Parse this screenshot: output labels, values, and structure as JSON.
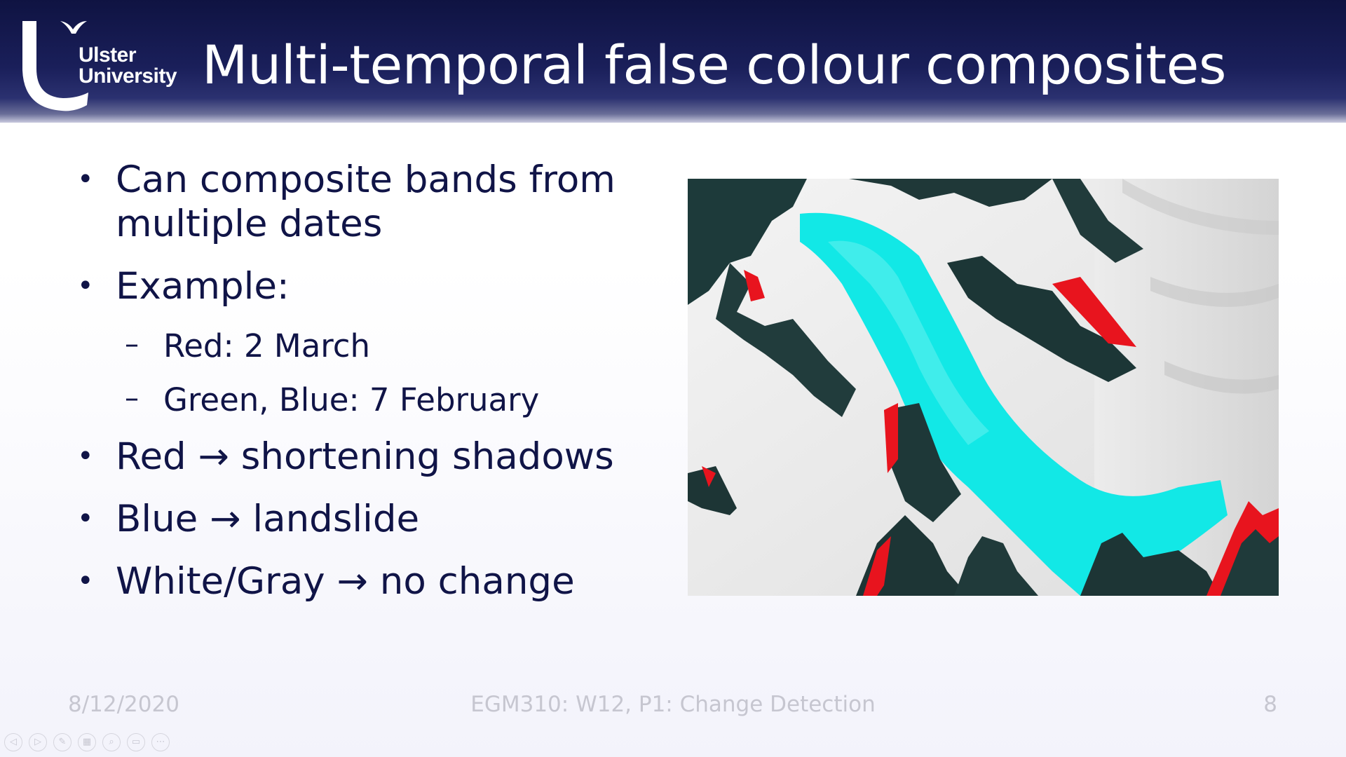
{
  "header": {
    "logo": {
      "line1": "Ulster",
      "line2": "University"
    },
    "title": "Multi-temporal false colour composites"
  },
  "bullets": [
    {
      "text": "Can composite bands from multiple dates",
      "level": 1
    },
    {
      "text": "Example:",
      "level": 1
    },
    {
      "text": "Red: 2 March",
      "level": 2
    },
    {
      "text": "Green, Blue: 7 February",
      "level": 2
    },
    {
      "text": "Red → shortening shadows",
      "level": 1
    },
    {
      "text": "Blue → landslide",
      "level": 1
    },
    {
      "text": "White/Gray → no change",
      "level": 1
    }
  ],
  "bullet_symbol": "•",
  "sub_bullet_symbol": "–",
  "colors": {
    "header_dark": "#0f1342",
    "text_navy": "#101447",
    "footer_gray": "#c6c6d0",
    "composite_red": "#e8141e",
    "composite_cyan": "#12e8e6",
    "composite_dark": "#1d3a3a"
  },
  "footer": {
    "date": "8/12/2020",
    "center": "EGM310: W12, P1: Change Detection",
    "page_number": "8"
  },
  "presenter_controls": [
    {
      "name": "previous-icon",
      "glyph": "◁"
    },
    {
      "name": "next-icon",
      "glyph": "▷"
    },
    {
      "name": "pen-icon",
      "glyph": "✎"
    },
    {
      "name": "slides-grid-icon",
      "glyph": "▦"
    },
    {
      "name": "zoom-icon",
      "glyph": "⌕"
    },
    {
      "name": "subtitles-icon",
      "glyph": "▭"
    },
    {
      "name": "more-options-icon",
      "glyph": "⋯"
    }
  ]
}
